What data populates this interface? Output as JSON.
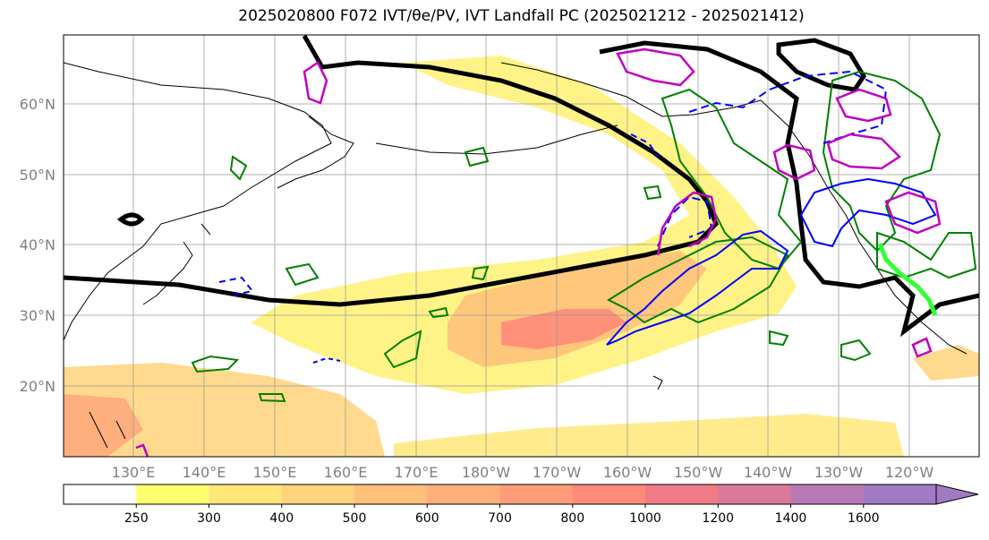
{
  "title": "2025020800 F072 IVT/θe/PV, IVT Landfall PC (2025021212 - 2025021412)",
  "lat_labels": [
    "60°N",
    "50°N",
    "40°N",
    "30°N",
    "20°N"
  ],
  "lon_labels": [
    "130°E",
    "140°E",
    "150°E",
    "160°E",
    "170°E",
    "180°W",
    "170°W",
    "160°W",
    "150°W",
    "140°W",
    "130°W",
    "120°W"
  ],
  "colorbar": {
    "ticks": [
      "250",
      "300",
      "400",
      "500",
      "600",
      "700",
      "800",
      "1000",
      "1200",
      "1400",
      "1600"
    ],
    "colors": [
      "#ffffff",
      "#ffff6e",
      "#ffe77a",
      "#ffd47a",
      "#ffc07a",
      "#ffb07a",
      "#ff9c7a",
      "#ff8a7a",
      "#f07a86",
      "#d97a98",
      "#b87ab4",
      "#a07ac2"
    ]
  },
  "colors": {
    "ivt_light": "#fff27a",
    "ivt_mid": "#ffc27a",
    "ivt_core": "#ff8a7a",
    "trough_line": "#000000",
    "pv_green": "#008000",
    "theta_blue": "#0000ff",
    "magenta": "#c000c0",
    "landfall": "#33ff33"
  }
}
